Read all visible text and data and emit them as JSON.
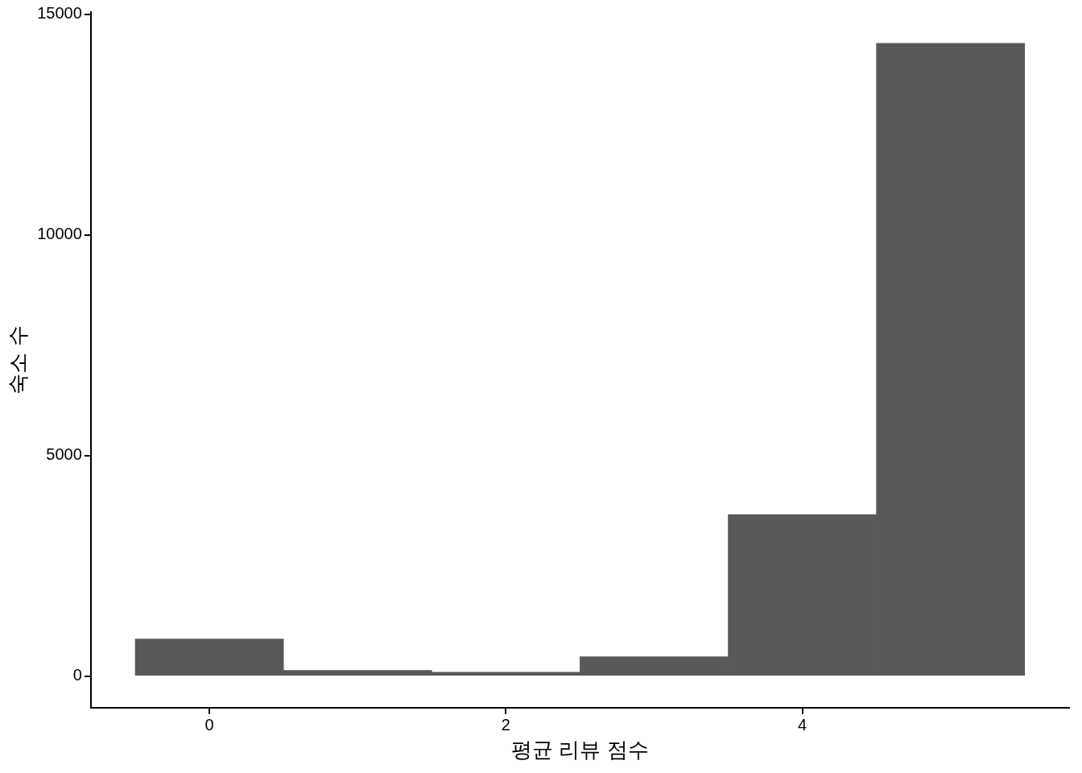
{
  "chart_data": {
    "type": "histogram",
    "xlabel": "평균 리뷰 점수",
    "ylabel": "숙소 수",
    "bins": [
      -0.5,
      0.5,
      1.5,
      2.5,
      3.5,
      4.5,
      5.5
    ],
    "values": [
      840,
      130,
      90,
      440,
      3660,
      14340
    ],
    "color": "#595959",
    "xlim": [
      -0.8,
      5.8
    ],
    "xticks": [
      0,
      2,
      4
    ],
    "ylim": [
      -713,
      15050
    ],
    "yticks": [
      0,
      5000,
      10000,
      15000
    ],
    "grid": false,
    "legend": false
  }
}
